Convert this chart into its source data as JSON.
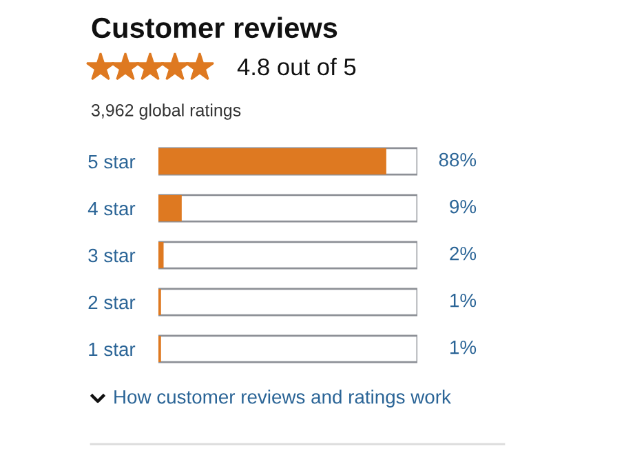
{
  "chart_data": {
    "type": "bar",
    "orientation": "horizontal",
    "title": "Customer reviews",
    "subtitle": "4.8 out of 5",
    "annotations": [
      "3,962 global ratings",
      "How customer reviews and ratings work"
    ],
    "categories": [
      "5 star",
      "4 star",
      "3 star",
      "2 star",
      "1 star"
    ],
    "values": [
      88,
      9,
      2,
      1,
      1
    ],
    "value_labels": [
      "88%",
      "9%",
      "2%",
      "1%",
      "1%"
    ],
    "color": "#de7921",
    "xlim": [
      0,
      100
    ],
    "tick_labels": "y",
    "grid": false,
    "legend": false
  }
}
